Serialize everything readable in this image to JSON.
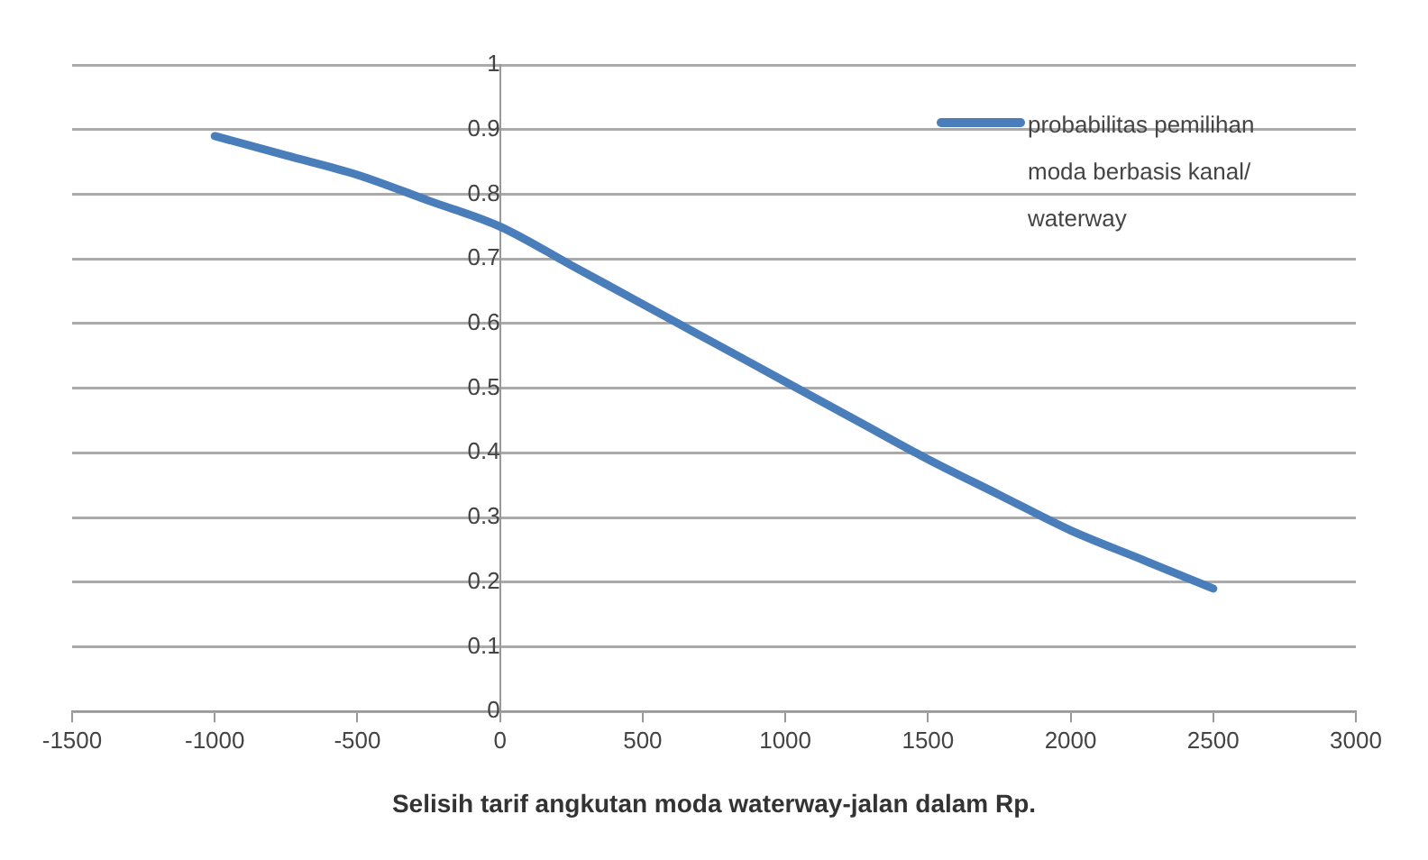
{
  "chart_data": {
    "type": "line",
    "xlabel": "Selisih tarif angkutan moda waterway-jalan dalam Rp.",
    "x": [
      -1000,
      -750,
      -500,
      -250,
      0,
      250,
      500,
      750,
      1000,
      1250,
      1500,
      1750,
      2000,
      2250,
      2500
    ],
    "series": [
      {
        "name": "probabilitas pemilihan moda berbasis kanal/ waterway",
        "color": "#4a7ebb",
        "values": [
          0.89,
          0.86,
          0.83,
          0.79,
          0.75,
          0.69,
          0.63,
          0.57,
          0.51,
          0.45,
          0.39,
          0.335,
          0.28,
          0.235,
          0.19
        ]
      }
    ],
    "xlim": [
      -1500,
      3000
    ],
    "xticks": [
      -1500,
      -1000,
      -500,
      0,
      500,
      1000,
      1500,
      2000,
      2500,
      3000
    ],
    "ylim": [
      0,
      1
    ],
    "yticks": [
      0,
      0.1,
      0.2,
      0.3,
      0.4,
      0.5,
      0.6,
      0.7,
      0.8,
      0.9,
      1
    ],
    "grid": "y",
    "legend": "top right",
    "marker": "none",
    "line_style": "solid"
  }
}
